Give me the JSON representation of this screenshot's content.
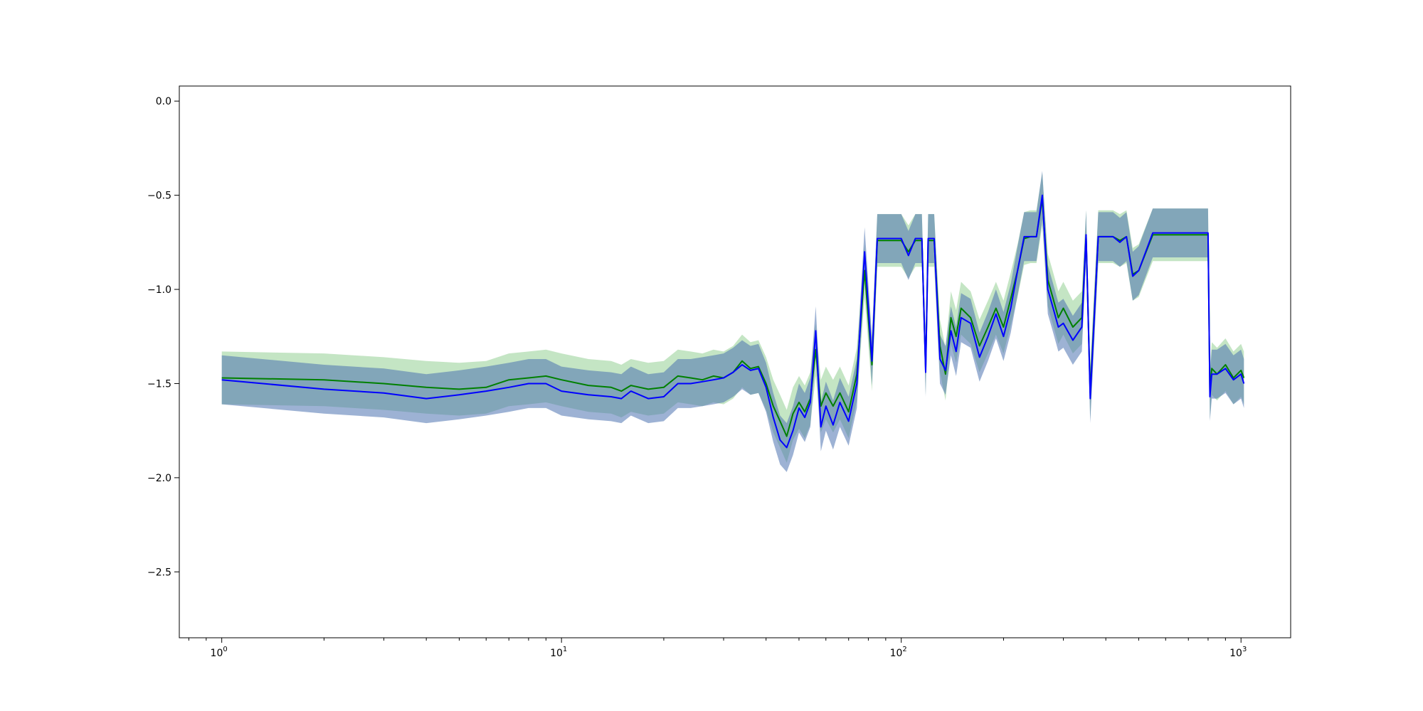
{
  "chart_data": {
    "type": "line",
    "title": "",
    "xlabel": "",
    "ylabel": "",
    "xscale": "log",
    "xlim": [
      0.75,
      1400
    ],
    "ylim": [
      -2.85,
      0.08
    ],
    "grid": false,
    "legend": "none",
    "x_ticks": [
      {
        "value": 1,
        "base": "10",
        "exp": "0"
      },
      {
        "value": 10,
        "base": "10",
        "exp": "1"
      },
      {
        "value": 100,
        "base": "10",
        "exp": "2"
      },
      {
        "value": 1000,
        "base": "10",
        "exp": "3"
      }
    ],
    "y_ticks": [
      {
        "value": 0.0,
        "label": "0.0"
      },
      {
        "value": -0.5,
        "label": "−0.5"
      },
      {
        "value": -1.0,
        "label": "−1.0"
      },
      {
        "value": -1.5,
        "label": "−1.5"
      },
      {
        "value": -2.0,
        "label": "−2.0"
      },
      {
        "value": -2.5,
        "label": "−2.5"
      }
    ],
    "colors": {
      "green_line": "#008000",
      "green_band": "#2ca02c",
      "blue_line": "#0000ff",
      "blue_band": "#4c72b0",
      "blue_band_light": "#7777ff"
    },
    "series": [
      {
        "color": "#008000",
        "x": [
          1,
          2,
          3,
          4,
          5,
          6,
          7,
          8,
          9,
          10,
          12,
          14,
          15,
          16,
          18,
          20,
          22,
          24,
          26,
          28,
          30,
          32,
          34,
          36,
          38,
          40,
          42,
          44,
          46,
          48,
          50,
          52,
          54,
          56,
          58,
          60,
          63,
          66,
          70,
          74,
          78,
          82,
          85,
          90,
          95,
          100,
          105,
          110,
          115,
          118,
          120,
          125,
          130,
          135,
          140,
          145,
          150,
          160,
          170,
          180,
          190,
          200,
          210,
          220,
          230,
          240,
          250,
          260,
          270,
          280,
          290,
          300,
          320,
          340,
          350,
          360,
          380,
          400,
          420,
          440,
          460,
          480,
          500,
          550,
          600,
          700,
          800,
          810,
          820,
          850,
          900,
          950,
          1000,
          1020
        ],
        "y": [
          -1.47,
          -1.48,
          -1.5,
          -1.52,
          -1.53,
          -1.52,
          -1.48,
          -1.47,
          -1.46,
          -1.48,
          -1.51,
          -1.52,
          -1.54,
          -1.51,
          -1.53,
          -1.52,
          -1.46,
          -1.47,
          -1.48,
          -1.46,
          -1.47,
          -1.44,
          -1.38,
          -1.42,
          -1.41,
          -1.5,
          -1.62,
          -1.7,
          -1.78,
          -1.66,
          -1.6,
          -1.65,
          -1.58,
          -1.32,
          -1.62,
          -1.55,
          -1.62,
          -1.55,
          -1.65,
          -1.45,
          -0.9,
          -1.4,
          -0.74,
          -0.74,
          -0.74,
          -0.74,
          -0.8,
          -0.74,
          -0.74,
          -1.42,
          -0.74,
          -0.74,
          -1.3,
          -1.45,
          -1.15,
          -1.25,
          -1.1,
          -1.15,
          -1.3,
          -1.2,
          -1.1,
          -1.2,
          -1.05,
          -0.9,
          -0.73,
          -0.72,
          -0.72,
          -0.52,
          -0.95,
          -1.05,
          -1.15,
          -1.1,
          -1.2,
          -1.15,
          -0.72,
          -1.55,
          -0.72,
          -0.72,
          -0.72,
          -0.74,
          -0.72,
          -0.92,
          -0.9,
          -0.71,
          -0.71,
          -0.71,
          -0.71,
          -1.55,
          -1.42,
          -1.45,
          -1.4,
          -1.47,
          -1.43,
          -1.47
        ]
      },
      {
        "color": "#0000ff",
        "x": [
          1,
          2,
          3,
          4,
          5,
          6,
          7,
          8,
          9,
          10,
          12,
          14,
          15,
          16,
          18,
          20,
          22,
          24,
          26,
          28,
          30,
          32,
          34,
          36,
          38,
          40,
          42,
          44,
          46,
          48,
          50,
          52,
          54,
          56,
          58,
          60,
          63,
          66,
          70,
          74,
          78,
          82,
          85,
          90,
          95,
          100,
          105,
          110,
          115,
          118,
          120,
          125,
          130,
          135,
          140,
          145,
          150,
          160,
          170,
          180,
          190,
          200,
          210,
          220,
          230,
          240,
          250,
          260,
          270,
          280,
          290,
          300,
          320,
          340,
          350,
          360,
          380,
          400,
          420,
          440,
          460,
          480,
          500,
          550,
          600,
          700,
          800,
          810,
          820,
          850,
          900,
          950,
          1000,
          1020
        ],
        "y": [
          -1.48,
          -1.53,
          -1.55,
          -1.58,
          -1.56,
          -1.54,
          -1.52,
          -1.5,
          -1.5,
          -1.54,
          -1.56,
          -1.57,
          -1.58,
          -1.54,
          -1.58,
          -1.57,
          -1.5,
          -1.5,
          -1.49,
          -1.48,
          -1.47,
          -1.44,
          -1.4,
          -1.43,
          -1.42,
          -1.52,
          -1.68,
          -1.8,
          -1.84,
          -1.75,
          -1.63,
          -1.68,
          -1.6,
          -1.22,
          -1.73,
          -1.62,
          -1.72,
          -1.6,
          -1.7,
          -1.5,
          -0.8,
          -1.38,
          -0.73,
          -0.73,
          -0.73,
          -0.73,
          -0.82,
          -0.73,
          -0.73,
          -1.44,
          -0.73,
          -0.73,
          -1.37,
          -1.43,
          -1.22,
          -1.33,
          -1.15,
          -1.18,
          -1.36,
          -1.25,
          -1.13,
          -1.25,
          -1.1,
          -0.9,
          -0.72,
          -0.72,
          -0.72,
          -0.5,
          -1.0,
          -1.1,
          -1.2,
          -1.18,
          -1.27,
          -1.2,
          -0.71,
          -1.58,
          -0.72,
          -0.72,
          -0.72,
          -0.75,
          -0.72,
          -0.93,
          -0.9,
          -0.7,
          -0.7,
          -0.7,
          -0.7,
          -1.57,
          -1.45,
          -1.45,
          -1.42,
          -1.48,
          -1.45,
          -1.5
        ]
      }
    ]
  }
}
